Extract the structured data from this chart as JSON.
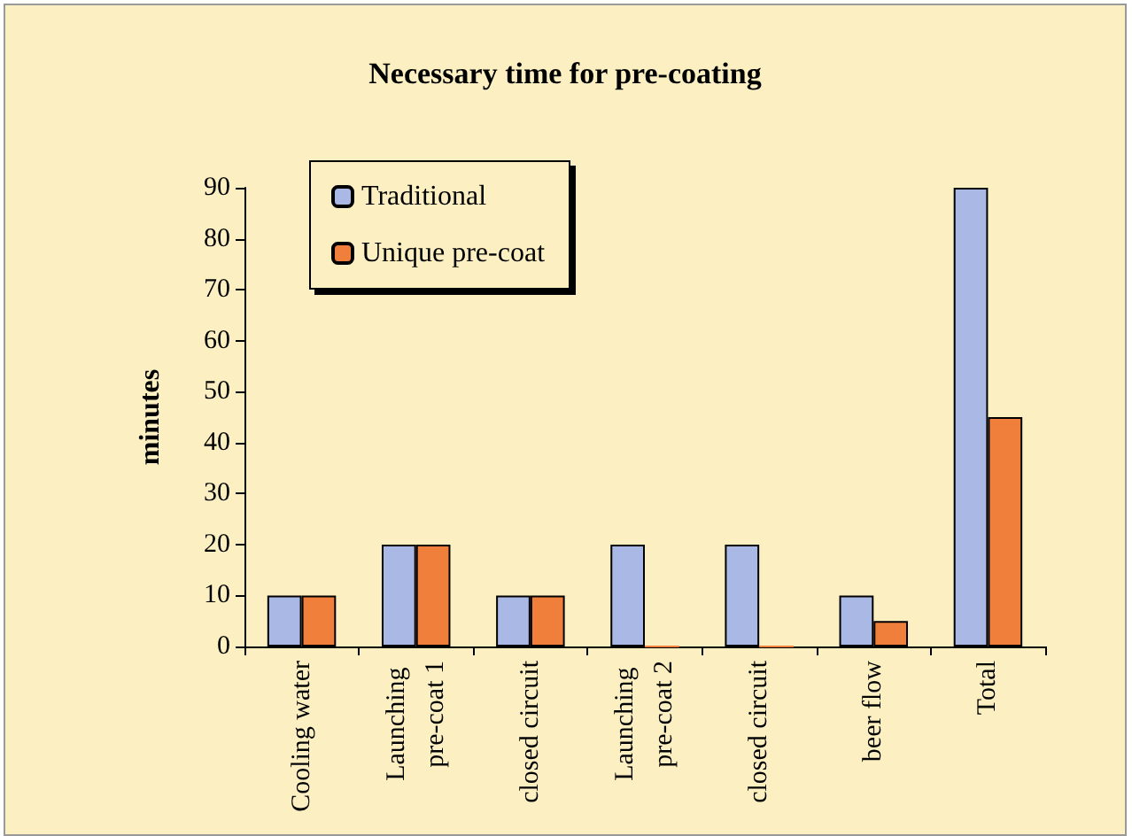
{
  "chart_data": {
    "type": "bar",
    "title": "Necessary time for pre-coating",
    "ylabel": "minutes",
    "categories": [
      "Cooling water",
      "Launching pre-coat 1",
      "closed circuit",
      "Launching pre-coat 2",
      "closed circuit",
      "beer flow",
      "Total"
    ],
    "series": [
      {
        "name": "Traditional",
        "color": "#a9b8e4",
        "values": [
          10,
          20,
          10,
          20,
          20,
          10,
          90
        ]
      },
      {
        "name": "Unique pre-coat",
        "color": "#f07f3c",
        "values": [
          10,
          20,
          10,
          0,
          0,
          5,
          45
        ]
      }
    ],
    "ylim": [
      0,
      90
    ],
    "yticks": [
      0,
      10,
      20,
      30,
      40,
      50,
      60,
      70,
      80,
      90
    ],
    "grid": false,
    "legend": "top left"
  }
}
